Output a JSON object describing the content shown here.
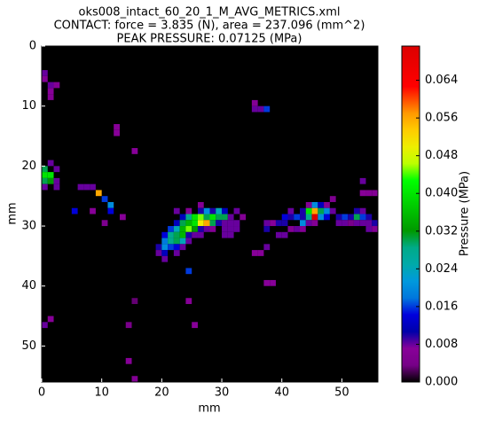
{
  "chart_data": {
    "type": "heatmap",
    "title": "oks008_intact_60_20_1_M_AVG_METRICS.xml",
    "subtitle": "CONTACT: force = 3.835 (N), area = 237.096 (mm^2)",
    "annotation": "PEAK PRESSURE: 0.07125 (MPa)",
    "x_label": "mm",
    "y_label": "mm",
    "colorbar_label": "Pressure (MPa)",
    "colormap": "nipy_spectral",
    "background": "#000000",
    "xlim": [
      0,
      56
    ],
    "ylim": [
      56,
      0
    ],
    "xticks": [
      0,
      10,
      20,
      30,
      40,
      50
    ],
    "yticks": [
      0,
      10,
      20,
      30,
      40,
      50
    ],
    "clim": [
      0,
      0.07125
    ],
    "cticks": [
      {
        "value": 0,
        "label": "0.000"
      },
      0.008,
      0.016,
      0.024,
      0.032,
      {
        "value": 0.04,
        "label": "0.040"
      },
      0.048,
      0.056,
      0.064
    ],
    "x": [
      0,
      0,
      1,
      1,
      1,
      2,
      35,
      35,
      36,
      37,
      12,
      12,
      15,
      1,
      0,
      0,
      1,
      0,
      1,
      2,
      2,
      0,
      2,
      6,
      7,
      8,
      9,
      10,
      11,
      5,
      11,
      8,
      13,
      10,
      26,
      22,
      24,
      26,
      27,
      28,
      29,
      30,
      32,
      23,
      24,
      25,
      26,
      27,
      28,
      29,
      30,
      31,
      33,
      22,
      23,
      24,
      25,
      26,
      27,
      28,
      29,
      30,
      31,
      32,
      21,
      22,
      23,
      24,
      25,
      26,
      27,
      28,
      30,
      31,
      32,
      20,
      21,
      22,
      23,
      24,
      25,
      26,
      30,
      31,
      20,
      21,
      22,
      23,
      24,
      19,
      20,
      21,
      22,
      23,
      19,
      20,
      22,
      20,
      24,
      35,
      36,
      37,
      53,
      54,
      55,
      53,
      48,
      44,
      45,
      46,
      47,
      41,
      43,
      44,
      45,
      46,
      47,
      48,
      52,
      53,
      40,
      41,
      42,
      43,
      44,
      45,
      46,
      47,
      49,
      50,
      51,
      52,
      53,
      54,
      37,
      38,
      39,
      40,
      43,
      44,
      45,
      49,
      50,
      51,
      52,
      53,
      54,
      55,
      37,
      41,
      42,
      43,
      54,
      55,
      39,
      40,
      37,
      38,
      15,
      24,
      1,
      0,
      25,
      14,
      14,
      15
    ],
    "y": [
      4,
      5,
      6,
      7,
      8,
      6,
      9,
      10,
      10,
      10,
      13,
      14,
      17,
      19,
      20,
      21,
      21,
      22,
      22,
      22,
      20,
      23,
      23,
      23,
      23,
      23,
      24,
      25,
      26,
      27,
      27,
      27,
      28,
      29,
      26,
      27,
      27,
      27,
      27,
      27,
      27,
      27,
      27,
      28,
      28,
      28,
      28,
      28,
      28,
      28,
      28,
      28,
      28,
      29,
      29,
      29,
      29,
      29,
      29,
      29,
      29,
      29,
      29,
      29,
      30,
      30,
      30,
      30,
      30,
      30,
      30,
      30,
      30,
      30,
      30,
      31,
      31,
      31,
      31,
      31,
      31,
      31,
      31,
      31,
      32,
      32,
      32,
      32,
      32,
      33,
      33,
      33,
      33,
      33,
      34,
      34,
      34,
      35,
      37,
      34,
      34,
      33,
      24,
      24,
      24,
      22,
      25,
      26,
      26,
      26,
      26,
      27,
      27,
      27,
      27,
      27,
      27,
      27,
      27,
      27,
      28,
      28,
      28,
      28,
      28,
      28,
      28,
      28,
      28,
      28,
      28,
      28,
      28,
      28,
      29,
      29,
      29,
      29,
      29,
      29,
      29,
      29,
      29,
      29,
      29,
      29,
      29,
      29,
      30,
      30,
      30,
      30,
      30,
      30,
      31,
      31,
      39,
      39,
      42,
      42,
      45,
      46,
      46,
      46,
      52,
      55
    ],
    "values": [
      0.008,
      0.006,
      0.008,
      0.007,
      0.006,
      0.006,
      0.006,
      0.008,
      0.008,
      0.016,
      0.007,
      0.007,
      0.007,
      0.008,
      0.03,
      0.04,
      0.04,
      0.03,
      0.032,
      0.008,
      0.008,
      0.008,
      0.008,
      0.008,
      0.008,
      0.008,
      0.056,
      0.016,
      0.02,
      0.014,
      0.014,
      0.007,
      0.007,
      0.005,
      0.006,
      0.008,
      0.006,
      0.01,
      0.02,
      0.01,
      0.024,
      0.012,
      0.008,
      0.012,
      0.028,
      0.04,
      0.045,
      0.03,
      0.04,
      0.03,
      0.03,
      0.008,
      0.006,
      0.012,
      0.03,
      0.035,
      0.04,
      0.05,
      0.056,
      0.03,
      0.01,
      0.008,
      0.008,
      0.008,
      0.016,
      0.024,
      0.035,
      0.045,
      0.032,
      0.01,
      0.008,
      0.006,
      0.008,
      0.008,
      0.008,
      0.014,
      0.028,
      0.03,
      0.035,
      0.01,
      0.008,
      0.008,
      0.008,
      0.008,
      0.018,
      0.028,
      0.03,
      0.024,
      0.008,
      0.01,
      0.02,
      0.016,
      0.014,
      0.008,
      0.008,
      0.012,
      0.008,
      0.008,
      0.016,
      0.007,
      0.007,
      0.008,
      0.007,
      0.006,
      0.006,
      0.008,
      0.005,
      0.006,
      0.02,
      0.012,
      0.006,
      0.008,
      0.01,
      0.04,
      0.056,
      0.03,
      0.02,
      0.008,
      0.01,
      0.008,
      0.014,
      0.01,
      0.016,
      0.01,
      0.028,
      0.07125,
      0.02,
      0.014,
      0.01,
      0.016,
      0.01,
      0.03,
      0.016,
      0.01,
      0.008,
      0.007,
      0.01,
      0.01,
      0.02,
      0.008,
      0.006,
      0.008,
      0.008,
      0.004,
      0.008,
      0.008,
      0.008,
      0.01,
      0.01,
      0.006,
      0.008,
      0.006,
      0.008,
      0.006,
      0.008,
      0.008,
      0.007,
      0.007,
      0.003,
      0.007,
      0.007,
      0.008,
      0.007,
      0.004,
      0.007,
      0.006
    ]
  }
}
